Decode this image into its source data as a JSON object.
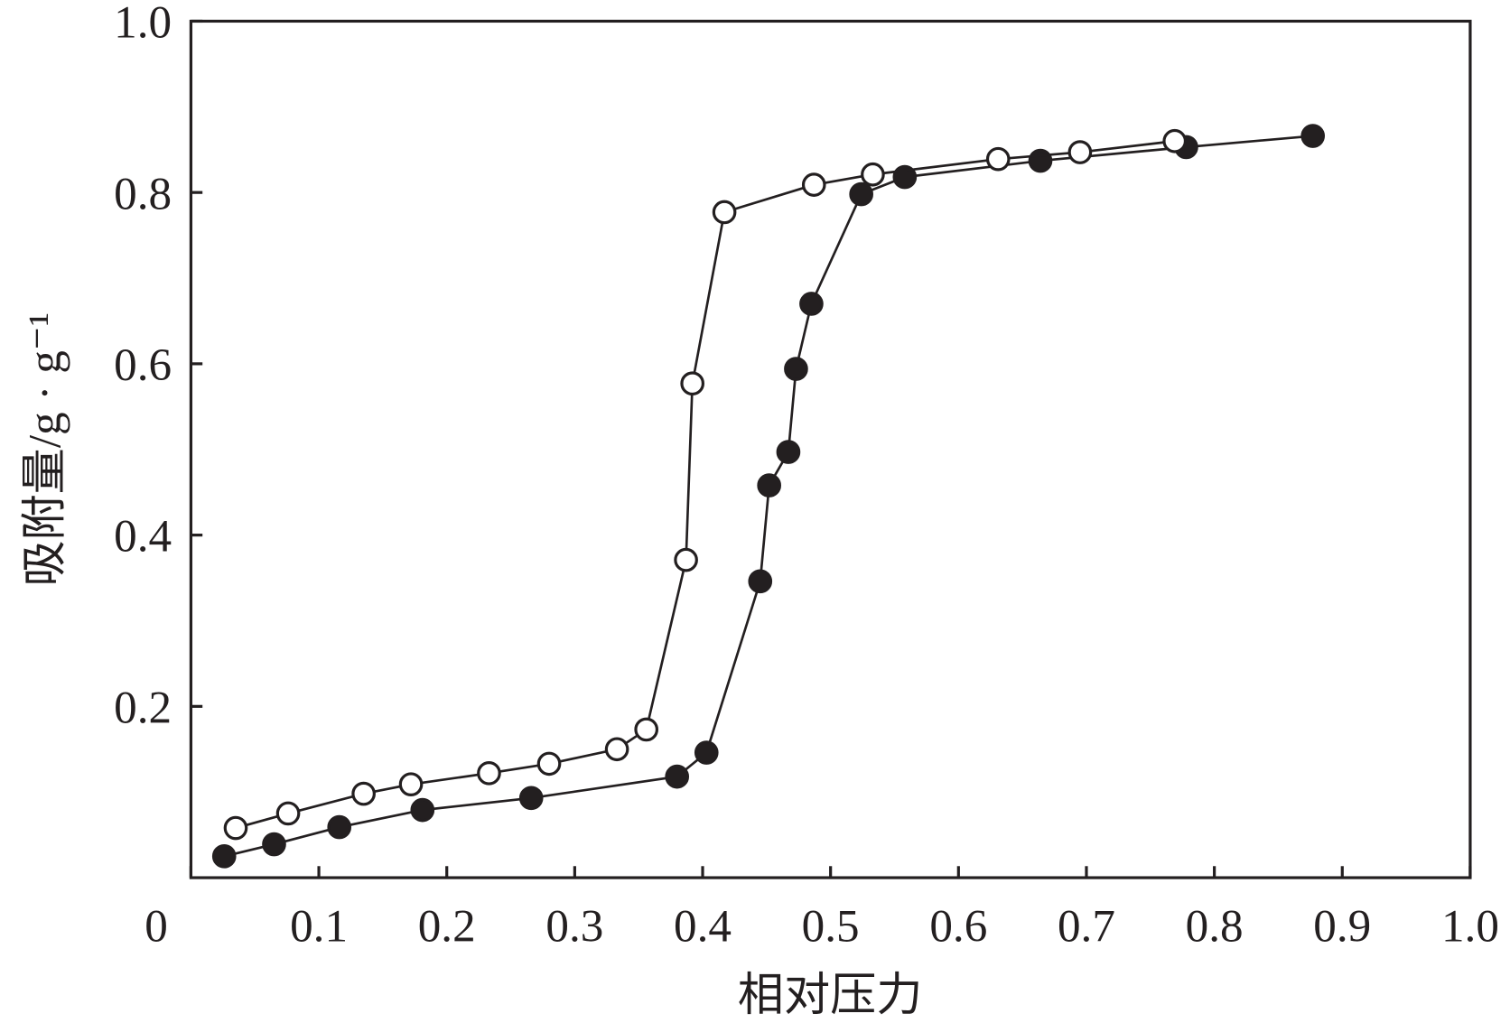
{
  "chart_data": {
    "type": "line",
    "xlabel": "相对压力",
    "ylabel": "吸附量/g · g⁻¹",
    "xlim": [
      0,
      1
    ],
    "ylim": [
      0,
      1
    ],
    "xticks": [
      0,
      0.1,
      0.2,
      0.3,
      0.4,
      0.5,
      0.6,
      0.7,
      0.8,
      0.9,
      {
        "value": 1,
        "label": "1.0"
      }
    ],
    "yticks": [
      0.2,
      0.4,
      0.6,
      0.8,
      {
        "value": 1,
        "label": "1.0"
      }
    ],
    "series": [
      {
        "color": "#231f20",
        "marker_fill": "#231f20",
        "x": [
          0.026,
          0.065,
          0.116,
          0.181,
          0.266,
          0.38,
          0.403,
          0.445,
          0.452,
          0.467,
          0.473,
          0.485,
          0.524,
          0.558,
          0.664,
          0.778,
          0.877
        ],
        "values": [
          0.025,
          0.039,
          0.059,
          0.079,
          0.093,
          0.118,
          0.146,
          0.346,
          0.458,
          0.497,
          0.594,
          0.67,
          0.798,
          0.818,
          0.837,
          0.853,
          0.866
        ]
      },
      {
        "color": "#231f20",
        "marker_fill": "#ffffff",
        "x": [
          0.035,
          0.076,
          0.135,
          0.172,
          0.233,
          0.28,
          0.333,
          0.356,
          0.387,
          0.392,
          0.417,
          0.487,
          0.533,
          0.631,
          0.695,
          0.769
        ],
        "values": [
          0.058,
          0.075,
          0.098,
          0.109,
          0.122,
          0.133,
          0.15,
          0.173,
          0.371,
          0.577,
          0.777,
          0.809,
          0.821,
          0.839,
          0.847,
          0.86
        ]
      }
    ]
  }
}
